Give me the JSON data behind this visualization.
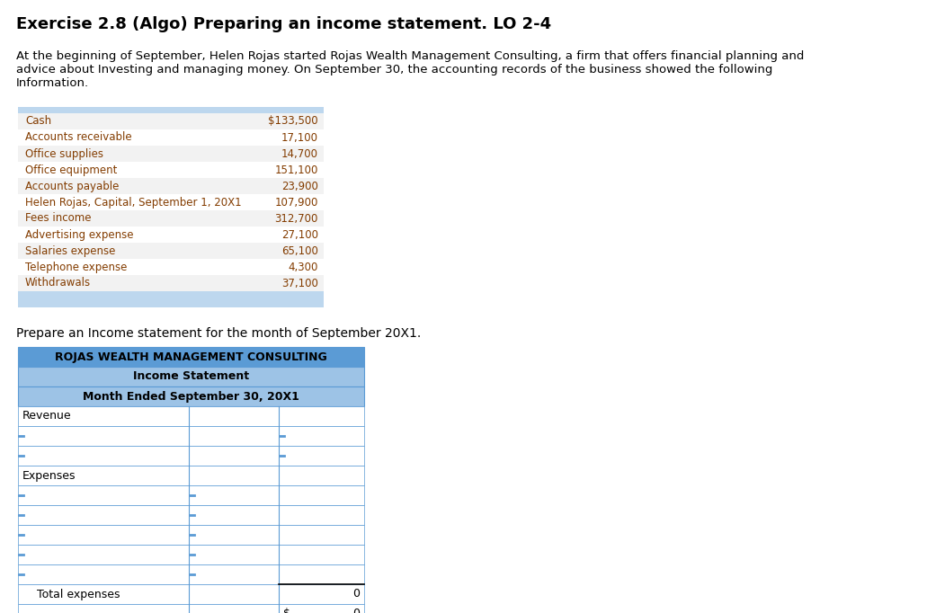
{
  "title": "Exercise 2.8 (Algo) Preparing an income statement. LO 2-4",
  "intro_lines": [
    "At the beginning of September, Helen Rojas started Rojas Wealth Management Consulting, a firm that offers financial planning and",
    "advice about Investing and managing money. On September 30, the accounting records of the business showed the following",
    "Information."
  ],
  "data_table": {
    "items": [
      {
        "label": "Cash",
        "value": "$133,500"
      },
      {
        "label": "Accounts receivable",
        "value": "17,100"
      },
      {
        "label": "Office supplies",
        "value": "14,700"
      },
      {
        "label": "Office equipment",
        "value": "151,100"
      },
      {
        "label": "Accounts payable",
        "value": "23,900"
      },
      {
        "label": "Helen Rojas, Capital, September 1, 20X1",
        "value": "107,900"
      },
      {
        "label": "Fees income",
        "value": "312,700"
      },
      {
        "label": "Advertising expense",
        "value": "27,100"
      },
      {
        "label": "Salaries expense",
        "value": "65,100"
      },
      {
        "label": "Telephone expense",
        "value": "4,300"
      },
      {
        "label": "Withdrawals",
        "value": "37,100"
      }
    ],
    "bg_colors": [
      "#f2f2f2",
      "#ffffff",
      "#f2f2f2",
      "#ffffff",
      "#f2f2f2",
      "#ffffff",
      "#f2f2f2",
      "#ffffff",
      "#f2f2f2",
      "#ffffff",
      "#f2f2f2"
    ],
    "band_color": "#bdd7ee",
    "label_color": "#833c00",
    "value_color": "#833c00"
  },
  "prepare_text": "Prepare an Income statement for the month of September 20X1.",
  "income_statement": {
    "company": "ROJAS WEALTH MANAGEMENT CONSULTING",
    "title_row": "Income Statement",
    "period_row": "Month Ended September 30, 20X1",
    "header_color": "#5b9bd5",
    "subheader_color": "#9dc3e6",
    "border_color": "#5b9bd5",
    "revenue_label": "Revenue",
    "expenses_label": "Expenses",
    "total_expenses_label": "Total expenses",
    "zero_value": "0",
    "dollar_sign": "$"
  },
  "table_font": "Courier New",
  "body_font": "Arial",
  "title_font": "Arial",
  "title_fontsize": 13,
  "intro_fontsize": 9.5,
  "data_fontsize": 8.5,
  "prepare_fontsize": 10,
  "ist_fontsize": 9
}
